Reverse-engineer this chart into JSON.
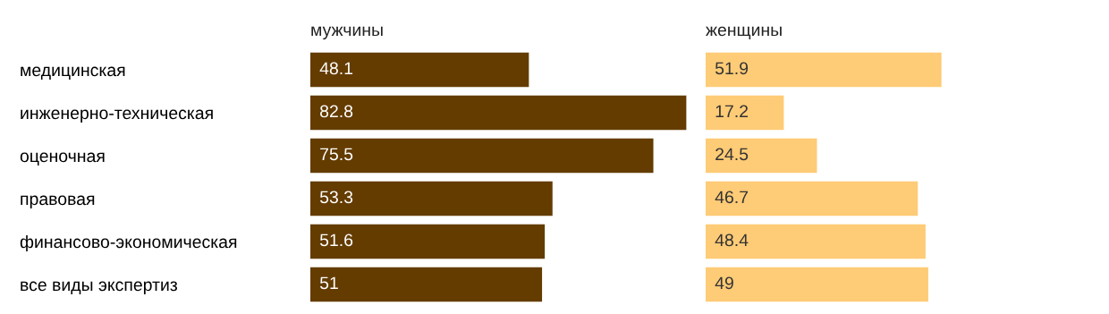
{
  "chart_data": [
    {
      "type": "bar",
      "orientation": "horizontal",
      "title": "мужчины",
      "categories": [
        "медицинская",
        "инженерно-техническая",
        "оценочная",
        "правовая",
        "финансово-экономическая",
        "все виды экспертиз"
      ],
      "values": [
        48.1,
        82.8,
        75.5,
        53.3,
        51.6,
        51
      ],
      "color": "#643c00",
      "data_labels": true,
      "tick_labels": "y"
    },
    {
      "type": "bar",
      "orientation": "horizontal",
      "title": "женщины",
      "values": [
        51.9,
        17.2,
        24.5,
        46.7,
        48.4,
        49
      ],
      "color": "#fecb76",
      "data_labels": true,
      "tick_labels": false
    }
  ]
}
